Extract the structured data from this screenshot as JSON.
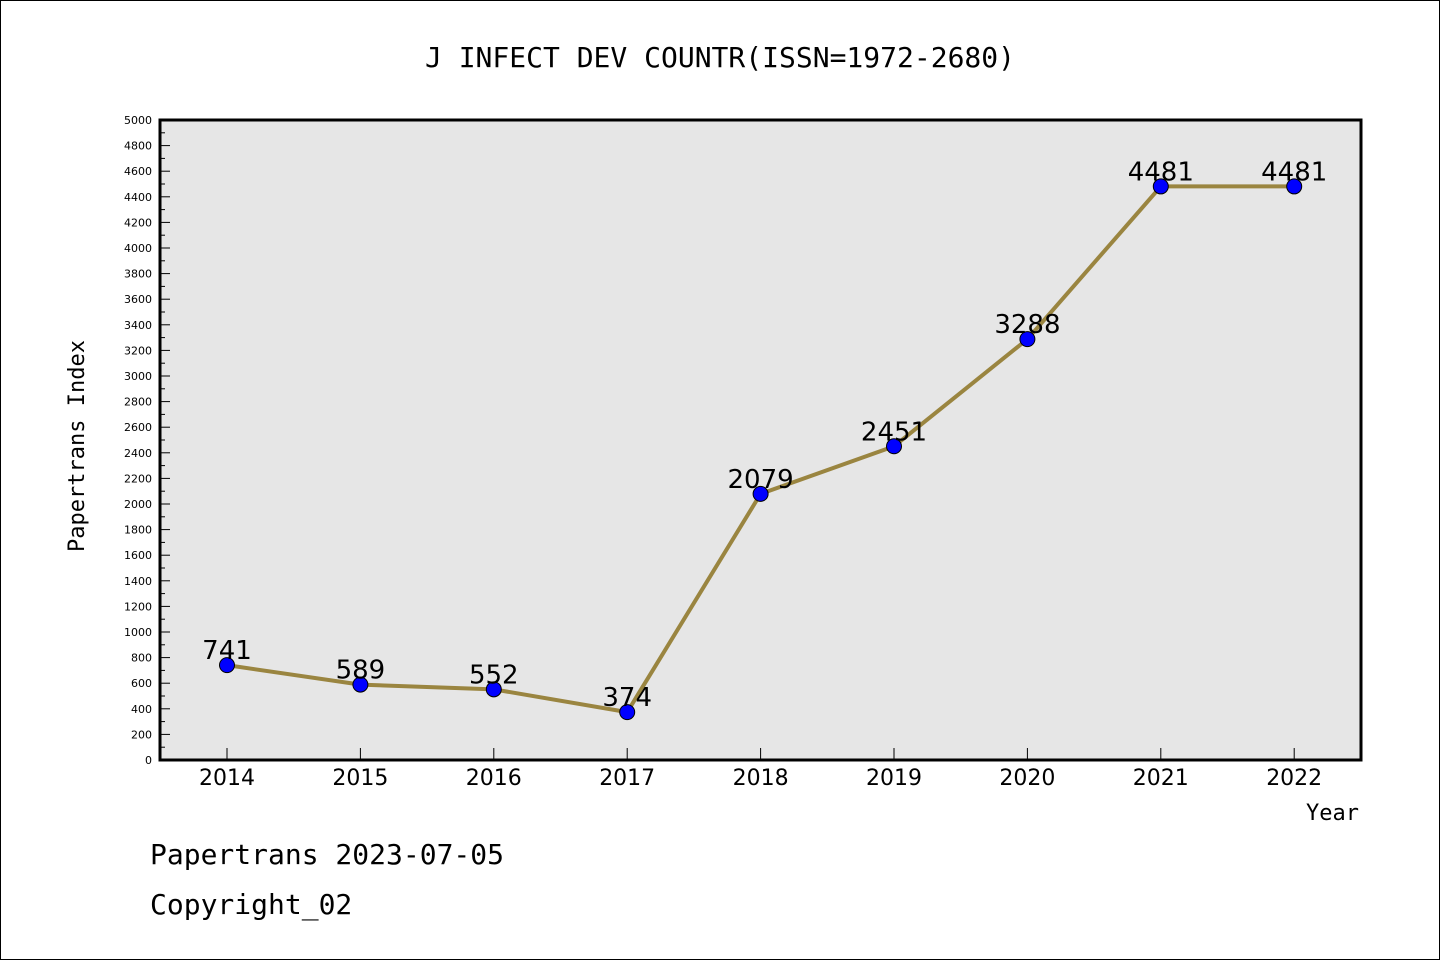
{
  "chart_data": {
    "type": "line",
    "title": "J INFECT DEV COUNTR(ISSN=1972-2680)",
    "xlabel": "Year",
    "ylabel": "Papertrans Index",
    "categories": [
      "2014",
      "2015",
      "2016",
      "2017",
      "2018",
      "2019",
      "2020",
      "2021",
      "2022"
    ],
    "series": [
      {
        "values": [
          741,
          589,
          552,
          374,
          2079,
          2451,
          3288,
          4481,
          4481
        ]
      }
    ],
    "ylim": [
      0,
      5000
    ],
    "ytick_step": 200,
    "grid": false,
    "legend": "none",
    "colors": {
      "line": "#9a8540",
      "marker": "#0000ff",
      "plot_bg": "#e6e6e6"
    }
  },
  "footer": {
    "line1": "Papertrans 2023-07-05",
    "line2": "Copyright_02"
  }
}
